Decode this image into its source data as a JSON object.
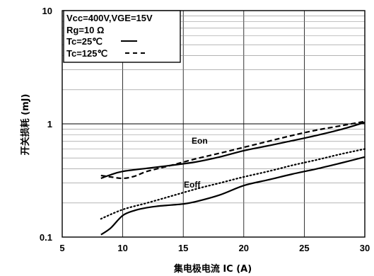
{
  "chart_data": {
    "type": "line",
    "xlabel": "集电极电流 IC (A)",
    "ylabel": "开关损耗 (mJ)",
    "xlim": [
      5,
      30
    ],
    "ylim": [
      0.1,
      10
    ],
    "yscale": "log",
    "grid": true,
    "x_ticks": [
      "5",
      "10",
      "15",
      "20",
      "25",
      "30"
    ],
    "y_ticks": [
      "0.1",
      "1",
      "10"
    ],
    "legend": {
      "position": "top-left",
      "lines": [
        "Vcc=400V,VGE=15V",
        "Rg=10 Ω",
        "Tc=25℃",
        "Tc=125℃"
      ]
    },
    "series": [
      {
        "name": "Eon",
        "curve": "solid",
        "x": [
          8.2,
          9,
          10,
          12,
          14,
          16,
          18,
          20,
          22,
          24,
          26,
          28,
          30
        ],
        "y": [
          0.33,
          0.355,
          0.38,
          0.405,
          0.43,
          0.46,
          0.51,
          0.58,
          0.64,
          0.71,
          0.79,
          0.89,
          1.03
        ]
      },
      {
        "name": "Eon",
        "curve": "dashed",
        "x": [
          8.2,
          9,
          10,
          11,
          12,
          14,
          16,
          18,
          20,
          22,
          24,
          26,
          28,
          30
        ],
        "y": [
          0.35,
          0.34,
          0.33,
          0.345,
          0.38,
          0.43,
          0.49,
          0.55,
          0.62,
          0.7,
          0.79,
          0.88,
          0.96,
          1.05
        ]
      },
      {
        "name": "Eoff",
        "curve": "solid",
        "x": [
          8.2,
          9,
          10,
          11,
          12,
          13,
          14,
          15,
          16,
          18,
          20,
          22,
          24,
          26,
          28,
          30
        ],
        "y": [
          0.105,
          0.12,
          0.155,
          0.172,
          0.182,
          0.188,
          0.192,
          0.196,
          0.205,
          0.235,
          0.285,
          0.32,
          0.36,
          0.4,
          0.45,
          0.51
        ]
      },
      {
        "name": "Eoff",
        "curve": "dotted",
        "x": [
          8.2,
          10,
          12,
          14,
          16,
          18,
          20,
          22,
          24,
          26,
          28,
          30
        ],
        "y": [
          0.145,
          0.175,
          0.2,
          0.23,
          0.265,
          0.3,
          0.34,
          0.38,
          0.43,
          0.48,
          0.54,
          0.6
        ]
      }
    ]
  }
}
